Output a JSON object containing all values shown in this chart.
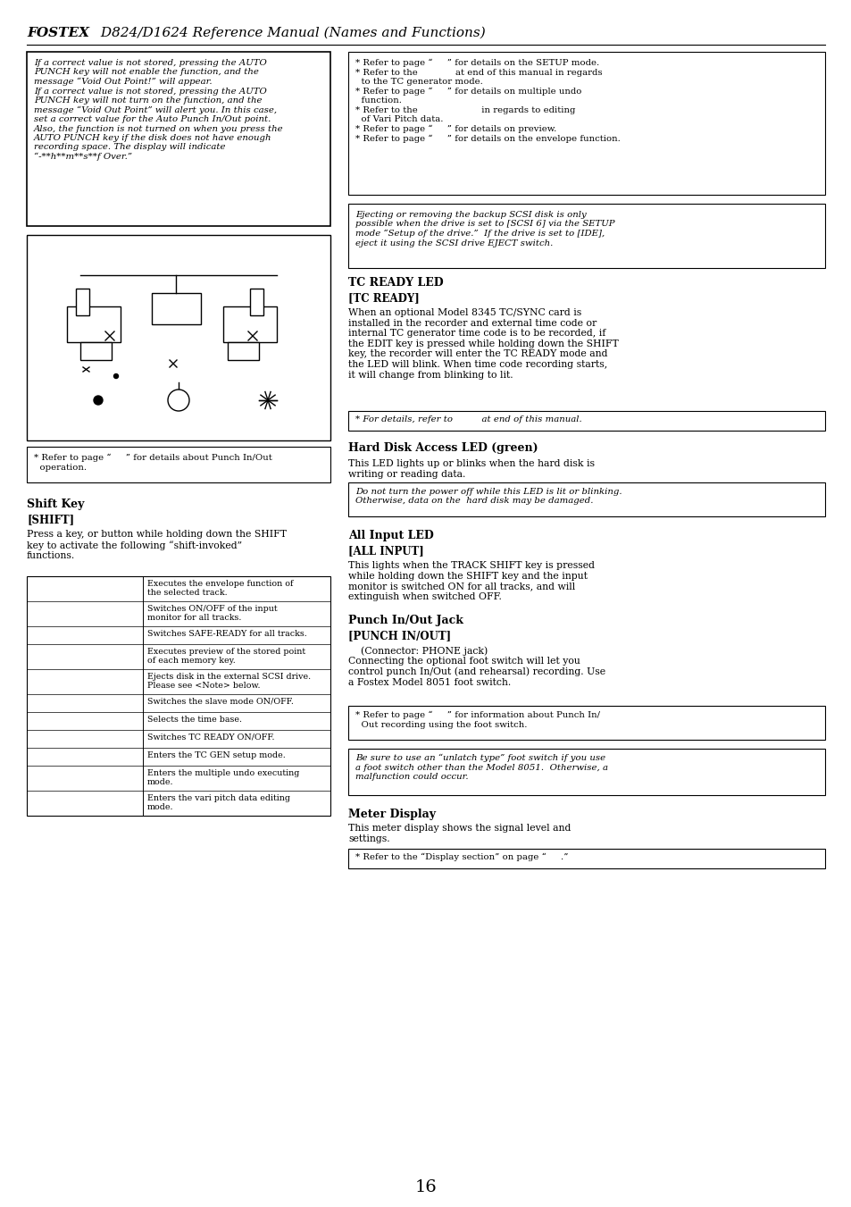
{
  "title_bold": "FOSTEX",
  "title_rest": " D824/D1624 Reference Manual (Names and Functions)",
  "page_number": "16",
  "bg_color": "#ffffff",
  "text_color": "#000000",
  "left_box1_text": "If a correct value is not stored, pressing the AUTO\nPUNCH key will not enable the function, and the\nmessage “Void Out Point!” will appear.\nIf a correct value is not stored, pressing the AUTO\nPUNCH key will not turn on the function, and the\nmessage “Void Out Point” will alert you. In this case,\nset a correct value for the Auto Punch In/Out point.\nAlso, the function is not turned on when you press the\nAUTO PUNCH key if the disk does not have enough\nrecording space. The display will indicate\n“-**h**m**s**f Over.”",
  "right_box1_lines": [
    "* Refer to page “     ” for details on the SETUP mode.",
    "* Refer to the             at end of this manual in regards",
    "  to the TC generator mode.",
    "* Refer to page “     ” for details on multiple undo",
    "  function.",
    "* Refer to the                      in regards to editing",
    "  of Vari Pitch data.",
    "* Refer to page “     ” for details on preview.",
    "* Refer to page “     ” for details on the envelope function."
  ],
  "right_box2_text": "Ejecting or removing the backup SCSI disk is only\npossible when the drive is set to [SCSI 6] via the SETUP\nmode “Setup of the drive.”  If the drive is set to [IDE],\neject it using the SCSI drive EJECT switch.",
  "tc_ready_header": "TC READY LED",
  "tc_ready_label": "[TC READY]",
  "tc_ready_body": "When an optional Model 8345 TC/SYNC card is\ninstalled in the recorder and external time code or\ninternal TC generator time code is to be recorded, if\nthe EDIT key is pressed while holding down the SHIFT\nkey, the recorder will enter the TC READY mode and\nthe LED will blink. When time code recording starts,\nit will change from blinking to lit.",
  "tc_ready_note": "* For details, refer to          at end of this manual.",
  "hdd_led_header": "Hard Disk Access LED (green)",
  "hdd_led_body": "This LED lights up or blinks when the hard disk is\nwriting or reading data.",
  "hdd_led_note": "Do not turn the power off while this LED is lit or blinking.\nOtherwise, data on the  hard disk may be damaged.",
  "punch_header": "Punch In/Out Jack",
  "punch_label": "[PUNCH IN/OUT]",
  "punch_body": "    (Connector: PHONE jack)\nConnecting the optional foot switch will let you\ncontrol punch In/Out (and rehearsal) recording. Use\na Fostex Model 8051 foot switch.",
  "punch_note1": "* Refer to page “     ” for information about Punch In/\n  Out recording using the foot switch.",
  "punch_note2": "Be sure to use an “unlatch type” foot switch if you use\na foot switch other than the Model 8051.  Otherwise, a\nmalfunction could occur.",
  "all_input_header": "All Input LED",
  "all_input_label": "[ALL INPUT]",
  "all_input_body": "This lights when the TRACK SHIFT key is pressed\nwhile holding down the SHIFT key and the input\nmonitor is switched ON for all tracks, and will\nextinguish when switched OFF.",
  "shift_header": "Shift Key",
  "shift_label": "[SHIFT]",
  "shift_body1": "Press a key, or button while holding down the SHIFT\nkey to activate the following “shift-invoked”\nfunctions.",
  "shift_table_rows": [
    [
      "",
      "Executes the envelope function of\nthe selected track."
    ],
    [
      "",
      "Switches ON/OFF of the input\nmonitor for all tracks."
    ],
    [
      "",
      "Switches SAFE-READY for all tracks."
    ],
    [
      "",
      "Executes preview of the stored point\nof each memory key."
    ],
    [
      "",
      "Ejects disk in the external SCSI drive.\nPlease see <Note> below."
    ],
    [
      "",
      "Switches the slave mode ON/OFF."
    ],
    [
      "",
      "Selects the time base."
    ],
    [
      "",
      "Switches TC READY ON/OFF."
    ],
    [
      "",
      "Enters the TC GEN setup mode."
    ],
    [
      "",
      "Enters the multiple undo executing\nmode."
    ],
    [
      "",
      "Enters the vari pitch data editing\nmode."
    ]
  ],
  "punch_inout_note": "* Refer to page “     ” for details about Punch In/Out\n  operation.",
  "meter_header": "Meter Display",
  "meter_body": "This meter display shows the signal level and\nsettings.",
  "meter_note": "* Refer to the “Display section” on page “     .”"
}
